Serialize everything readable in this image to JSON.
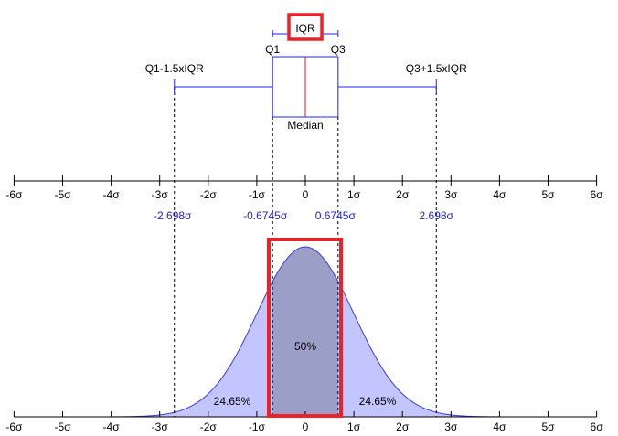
{
  "colors": {
    "box": "#2222ff",
    "median": "#cc2222",
    "axis": "#000000",
    "highlight": "#e8242a",
    "tail_fill": "#c3c5ff",
    "middle_fill": "#9b9ec7",
    "curve": "#3b3bd9",
    "annotation_blue": "#2222cc"
  },
  "boxplot": {
    "iqr_label": "IQR",
    "q1_label": "Q1",
    "q3_label": "Q3",
    "median_label": "Median",
    "lower_whisker_label": "Q1-1.5xIQR",
    "upper_whisker_label": "Q3+1.5xIQR"
  },
  "scale": {
    "tick_values": [
      -6,
      -5,
      -4,
      -3,
      -2,
      -1,
      0,
      1,
      2,
      3,
      4,
      5,
      6
    ],
    "tick_labels": [
      "-6σ",
      "-5σ",
      "-4σ",
      "-3σ",
      "-2σ",
      "-1σ",
      "0",
      "1σ",
      "2σ",
      "3σ",
      "4σ",
      "5σ",
      "6σ"
    ]
  },
  "markers": [
    {
      "value": -2.698,
      "label": "-2.698σ"
    },
    {
      "value": -0.6745,
      "label": "-0.6745σ"
    },
    {
      "value": 0.6745,
      "label": "0.6745σ"
    },
    {
      "value": 2.698,
      "label": "2.698σ"
    }
  ],
  "areas": {
    "middle": "50%",
    "left_tail": "24.65%",
    "right_tail": "24.65%"
  }
}
